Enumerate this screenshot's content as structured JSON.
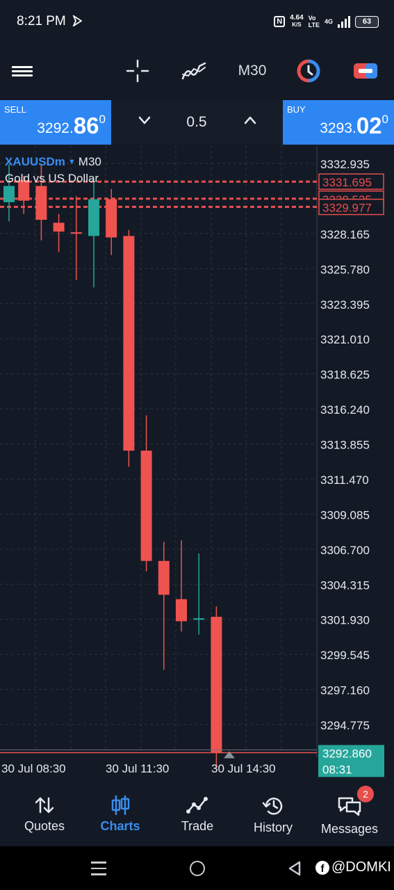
{
  "status_bar": {
    "time": "8:21 PM",
    "nfc": "N",
    "speed_value": "4.64",
    "speed_unit": "K/S",
    "network_top": "Vo",
    "network_bottom": "LTE",
    "network_gen": "4G",
    "battery": "63"
  },
  "toolbar": {
    "timeframe": "M30",
    "icons": [
      "menu-icon",
      "crosshair-icon",
      "indicator-icon",
      "objects-icon",
      "one-click-trading-icon"
    ]
  },
  "order_panel": {
    "sell_label": "SELL",
    "sell_price_main": "3292.",
    "sell_price_big": "86",
    "sell_price_sup": "0",
    "buy_label": "BUY",
    "buy_price_main": "3293.",
    "buy_price_big": "02",
    "buy_price_sup": "0",
    "lot": "0.5"
  },
  "chart_data": {
    "type": "candlestick",
    "symbol": "XAUUSDm",
    "timeframe": "M30",
    "description": "Gold vs US Dollar",
    "ylim": [
      3292.0,
      3333.5
    ],
    "y_ticks": [
      "3332.935",
      "3328.165",
      "3325.780",
      "3323.395",
      "3321.010",
      "3318.625",
      "3316.240",
      "3313.855",
      "3311.470",
      "3309.085",
      "3306.700",
      "3304.315",
      "3301.930",
      "3299.545",
      "3297.160",
      "3294.775"
    ],
    "x_tick_labels": [
      "30 Jul 08:30",
      "30 Jul 11:30",
      "30 Jul 14:30"
    ],
    "candles": [
      {
        "o": 3330.3,
        "h": 3332.9,
        "l": 3329.0,
        "c": 3331.4
      },
      {
        "o": 3331.8,
        "h": 3332.1,
        "l": 3329.5,
        "c": 3330.4
      },
      {
        "o": 3331.4,
        "h": 3332.9,
        "l": 3327.7,
        "c": 3329.1
      },
      {
        "o": 3328.9,
        "h": 3329.5,
        "l": 3326.9,
        "c": 3328.3
      },
      {
        "o": 3328.25,
        "h": 3330.7,
        "l": 3325.0,
        "c": 3328.15
      },
      {
        "o": 3328.0,
        "h": 3331.9,
        "l": 3324.5,
        "c": 3330.5
      },
      {
        "o": 3330.5,
        "h": 3331.2,
        "l": 3326.7,
        "c": 3327.9
      },
      {
        "o": 3328.0,
        "h": 3328.4,
        "l": 3312.3,
        "c": 3313.4
      },
      {
        "o": 3313.4,
        "h": 3315.8,
        "l": 3305.2,
        "c": 3305.9
      },
      {
        "o": 3305.9,
        "h": 3307.2,
        "l": 3298.5,
        "c": 3303.6
      },
      {
        "o": 3303.3,
        "h": 3307.3,
        "l": 3301.1,
        "c": 3301.8
      },
      {
        "o": 3301.9,
        "h": 3306.4,
        "l": 3300.9,
        "c": 3302.0
      },
      {
        "o": 3302.1,
        "h": 3302.8,
        "l": 3291.8,
        "c": 3292.86
      }
    ],
    "price_levels": [
      {
        "price": 3331.695,
        "label": "3331.695",
        "color": "#e84e4e",
        "style": "dashed"
      },
      {
        "price": 3330.535,
        "label": "3330.535",
        "color": "#e84e4e",
        "style": "dashed"
      },
      {
        "price": 3329.977,
        "label": "3329.977",
        "color": "#e84e4e",
        "style": "dashed"
      }
    ],
    "current_price": {
      "value": "3292.860",
      "time": "08:31",
      "color": "#26a69a"
    },
    "colors": {
      "bull": "#26a69a",
      "bear": "#ef5350",
      "grid": "#2b3342",
      "background": "#131a25"
    },
    "grid": true
  },
  "bottom_nav": [
    {
      "label": "Quotes",
      "icon": "sort-arrows-icon",
      "active": false
    },
    {
      "label": "Charts",
      "icon": "candles-icon",
      "active": true
    },
    {
      "label": "Trade",
      "icon": "trend-icon",
      "active": false
    },
    {
      "label": "History",
      "icon": "history-icon",
      "active": false
    },
    {
      "label": "Messages",
      "icon": "messages-icon",
      "active": false,
      "badge": "2"
    }
  ],
  "system_nav": {
    "watermark": "@DOMKI"
  }
}
